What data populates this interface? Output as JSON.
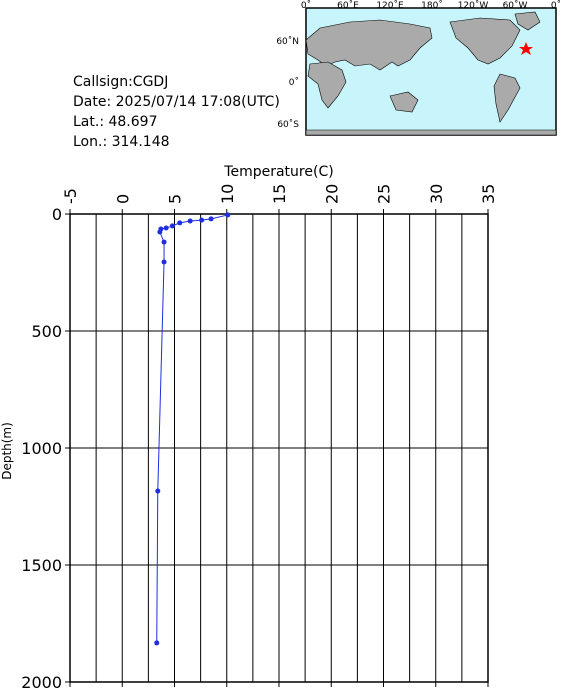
{
  "info": {
    "lines": [
      "Callsign:CGDJ",
      "Date:  2025/07/14 17:08(UTC)",
      "Lat.:  48.697",
      "Lon.:  314.148"
    ]
  },
  "map": {
    "lon_labels": [
      "0˚",
      "60˚E",
      "120˚E",
      "180˚",
      "120˚W",
      "60˚W",
      "0˚"
    ],
    "lat_labels": [
      "60˚N",
      "0˚",
      "60˚S"
    ]
  },
  "chart_data": {
    "type": "line",
    "x_label": "Temperature(C)",
    "y_label": "Depth(m)",
    "xlim": [
      -5,
      35
    ],
    "xticks": [
      -5,
      0,
      5,
      10,
      15,
      20,
      25,
      30,
      35
    ],
    "x_minor_grid": [
      -2.5,
      2.5,
      7.5,
      12.5,
      17.5,
      22.5,
      27.5,
      32.5
    ],
    "ylim": [
      0,
      2000
    ],
    "yticks": [
      0,
      500,
      1000,
      1500,
      2000
    ],
    "y_inverted": true,
    "grid": true,
    "series": [
      {
        "color": "#1f2ee0",
        "x": [
          10.1,
          8.5,
          7.6,
          6.5,
          5.5,
          4.8,
          4.2,
          3.7,
          3.6,
          4.0,
          4.0,
          3.4,
          3.3
        ],
        "values": [
          4,
          21,
          26,
          30,
          38,
          51,
          60,
          64,
          77,
          120,
          205,
          1184,
          1833
        ]
      }
    ]
  }
}
